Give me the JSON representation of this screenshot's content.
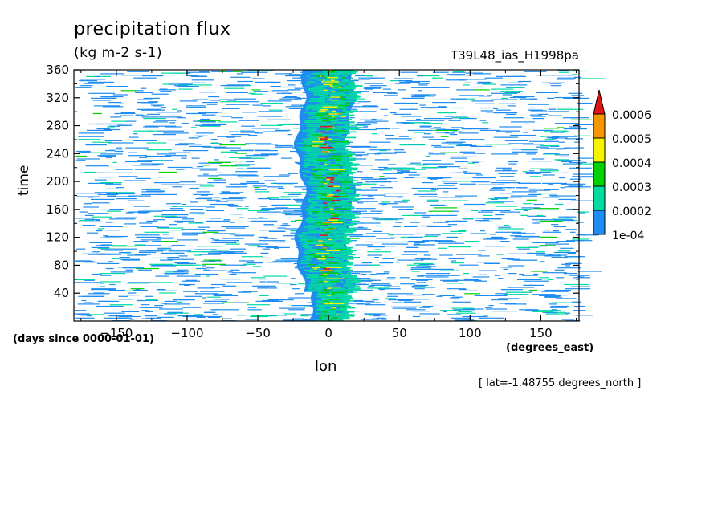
{
  "chart_data": {
    "type": "heatmap",
    "title": "precipitation flux",
    "units": "(kg m-2 s-1)",
    "run_id": "T39L48_ias_H1998pa",
    "xlabel": "lon",
    "x_units": "(degrees_east)",
    "ylabel": "time",
    "y_units": "(days since 0000-01-01)",
    "note": "[ lat=-1.48755 degrees_north ]",
    "xlim": [
      -180,
      177
    ],
    "ylim": [
      0,
      360
    ],
    "x_ticks": [
      -150,
      -100,
      -50,
      0,
      50,
      100,
      150
    ],
    "y_ticks": [
      40,
      80,
      120,
      160,
      200,
      240,
      280,
      320,
      360
    ],
    "colorbar": {
      "labels": [
        "1e-04",
        "0.0002",
        "0.0003",
        "0.0004",
        "0.0005",
        "0.0006"
      ],
      "levels": [
        0.0001,
        0.0002,
        0.0003,
        0.0004,
        0.0005,
        0.0006
      ],
      "colors": [
        "#1e8cf0",
        "#00dca0",
        "#00d200",
        "#f5f500",
        "#f59600",
        "#e11414"
      ],
      "extend": "max"
    },
    "pattern": {
      "center_band_lon": [
        -20,
        15
      ],
      "center_band_peak": "0.0006+ near lon 0",
      "background": "sparse zonal streaks of 1e-04 to 0.0003 at all longitudes"
    }
  }
}
